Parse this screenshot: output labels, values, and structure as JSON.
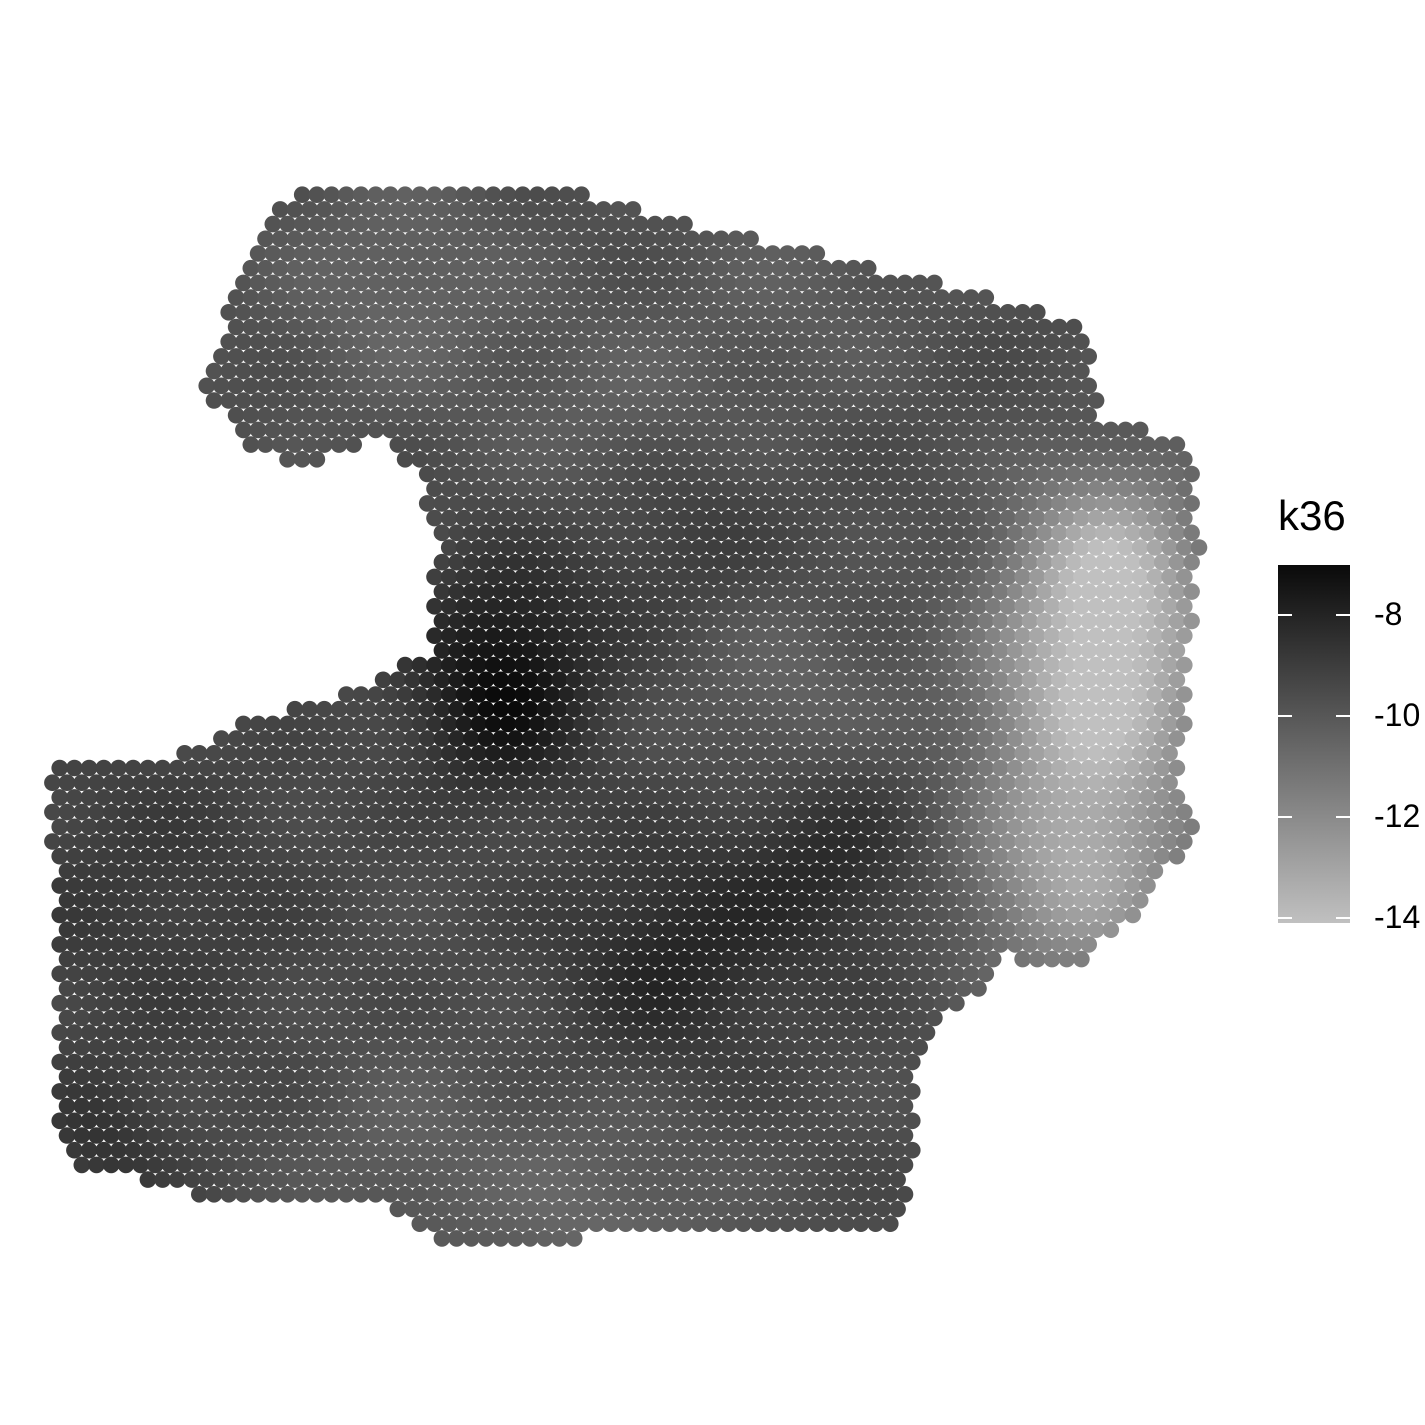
{
  "chart_data": {
    "type": "scatter",
    "subtype": "spatial-spot-map",
    "color_variable": "k36",
    "legend": {
      "title": "k36",
      "placement": "right",
      "ticks": [
        -8,
        -10,
        -12,
        -14
      ],
      "tick_labels": [
        "-8",
        "-10",
        "-12",
        "-14"
      ],
      "range": [
        -14.1,
        -7.0
      ],
      "color_low": "#c0c0c0",
      "color_high": "#0a0a0a"
    },
    "axes": "none",
    "grid": false
  }
}
